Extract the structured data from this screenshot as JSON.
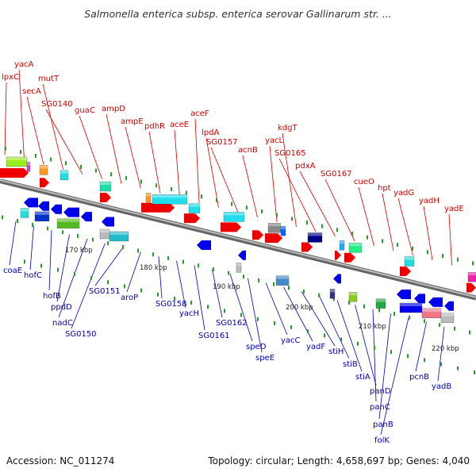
{
  "title": "Salmonella enterica subsp. enterica serovar Gallinarum str. ...",
  "footer": {
    "accession": "Accession: NC_011274",
    "summary": "Topology: circular; Length: 4,658,697 bp; Genes: 4,040"
  },
  "colors": {
    "top_label": "#cc0000",
    "bottom_label": "#0000aa",
    "backbone": "#8a8a8a",
    "tick": "#2a9a2a"
  },
  "top_labels": [
    "lpxC",
    "yacA",
    "secA",
    "mutT",
    "SG0140",
    "guaC",
    "ampD",
    "ampE",
    "pdhR",
    "aceE",
    "aceF",
    "lpdA",
    "SG0157",
    "acnB",
    "yacL",
    "kdgT",
    "SG0165",
    "pdxA",
    "SG0167",
    "cueO",
    "hpt",
    "yadG",
    "yadH",
    "yadE"
  ],
  "bottom_labels": [
    "coaE",
    "hofC",
    "hofB",
    "ppdD",
    "nadC",
    "SG0150",
    "SG0151",
    "aroP",
    "SG0158",
    "yacH",
    "SG0161",
    "SG0162",
    "speD",
    "speE",
    "yacC",
    "yadF",
    "stiH",
    "stiB",
    "stiA",
    "panD",
    "panC",
    "panB",
    "folK",
    "pcnB",
    "yadB"
  ],
  "scale_labels": [
    "170 kbp",
    "180 kbp",
    "190 kbp",
    "200 kbp",
    "210 kbp",
    "220 kbp"
  ]
}
